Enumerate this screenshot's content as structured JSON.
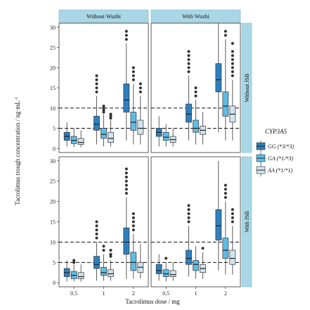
{
  "chart_data": {
    "type": "boxplot",
    "xlabel": "Tacrolimus dose / mg",
    "ylabel": "Tacrolimus trough concentration / ng·mL",
    "ylabel_superscript": "-1",
    "x_categories": [
      "0.5",
      "1",
      "2"
    ],
    "y_ticks": [
      0,
      5,
      10,
      15,
      20,
      25,
      30
    ],
    "ylim": [
      -1,
      31
    ],
    "reference_lines": [
      5,
      10
    ],
    "col_facets": [
      "Without Wuzhi",
      "With Wuzhi"
    ],
    "row_facets": [
      "Without JSB",
      "With JSB"
    ],
    "legend": {
      "title": "CYP3A5",
      "placement": "right",
      "entries": [
        {
          "label": "GG (*3/*3)",
          "color": "#2f7fbd"
        },
        {
          "label": "GA (*1/*3)",
          "color": "#5cbde6"
        },
        {
          "label": "AA (*1/*1)",
          "color": "#d2e4ee"
        }
      ]
    },
    "panels": [
      {
        "row": 0,
        "col": 0,
        "groups": [
          {
            "dose": "0.5",
            "boxes": [
              {
                "q1": 2,
                "median": 3,
                "q3": 4,
                "lw": 0.5,
                "uw": 6.5,
                "outliers": []
              },
              {
                "q1": 1.2,
                "median": 2,
                "q3": 3,
                "lw": 0.3,
                "uw": 5,
                "outliers": []
              },
              {
                "q1": 1,
                "median": 1.5,
                "q3": 2.5,
                "lw": 0.3,
                "uw": 4.5,
                "outliers": []
              }
            ]
          },
          {
            "dose": "1",
            "boxes": [
              {
                "q1": 4.5,
                "median": 6,
                "q3": 8,
                "lw": 1,
                "uw": 13,
                "outliers": [
                  14,
                  15,
                  16,
                  17,
                  18
                ]
              },
              {
                "q1": 2.5,
                "median": 3.5,
                "q3": 5,
                "lw": 0.5,
                "uw": 8.5,
                "outliers": [
                  9,
                  9.5,
                  10,
                  10.5
                ]
              },
              {
                "q1": 1.5,
                "median": 2.5,
                "q3": 4,
                "lw": 0.5,
                "uw": 7,
                "outliers": [
                  7.5,
                  8,
                  8.5
                ]
              }
            ]
          },
          {
            "dose": "2",
            "boxes": [
              {
                "q1": 9,
                "median": 12,
                "q3": 16,
                "lw": 2,
                "uw": 26,
                "outliers": [
                  27,
                  28,
                  29
                ]
              },
              {
                "q1": 4.5,
                "median": 6.5,
                "q3": 9,
                "lw": 1,
                "uw": 16,
                "outliers": [
                  17,
                  18,
                  19,
                  20
                ]
              },
              {
                "q1": 3.5,
                "median": 5,
                "q3": 7,
                "lw": 1,
                "uw": 13,
                "outliers": [
                  14,
                  15,
                  16
                ]
              }
            ]
          }
        ]
      },
      {
        "row": 0,
        "col": 1,
        "groups": [
          {
            "dose": "0.5",
            "boxes": [
              {
                "q1": 3,
                "median": 4,
                "q3": 5,
                "lw": 0.5,
                "uw": 8,
                "outliers": []
              },
              {
                "q1": 2,
                "median": 2.8,
                "q3": 4,
                "lw": 0.5,
                "uw": 6,
                "outliers": []
              },
              {
                "q1": 1.5,
                "median": 2.2,
                "q3": 3,
                "lw": 0.5,
                "uw": 5,
                "outliers": []
              }
            ]
          },
          {
            "dose": "1",
            "boxes": [
              {
                "q1": 6.5,
                "median": 8.5,
                "q3": 11,
                "lw": 2,
                "uw": 18,
                "outliers": [
                  19,
                  20,
                  21,
                  22,
                  23,
                  24
                ]
              },
              {
                "q1": 4,
                "median": 5,
                "q3": 7,
                "lw": 1,
                "uw": 12,
                "outliers": [
                  13,
                  14,
                  15
                ]
              },
              {
                "q1": 3.5,
                "median": 4.5,
                "q3": 5.5,
                "lw": 1,
                "uw": 9,
                "outliers": []
              }
            ]
          },
          {
            "dose": "2",
            "boxes": [
              {
                "q1": 14,
                "median": 17,
                "q3": 21,
                "lw": 4,
                "uw": 31,
                "outliers": []
              },
              {
                "q1": 8,
                "median": 10.5,
                "q3": 14,
                "lw": 2,
                "uw": 27,
                "outliers": [
                  28,
                  29
                ]
              },
              {
                "q1": 6.5,
                "median": 8.5,
                "q3": 10.5,
                "lw": 2,
                "uw": 17,
                "outliers": [
                  18,
                  19,
                  20,
                  21,
                  22,
                  23,
                  24,
                  26
                ]
              }
            ]
          }
        ]
      },
      {
        "row": 1,
        "col": 0,
        "groups": [
          {
            "dose": "0.5",
            "boxes": [
              {
                "q1": 1.5,
                "median": 2.5,
                "q3": 3.5,
                "lw": 0.3,
                "uw": 5.5,
                "outliers": []
              },
              {
                "q1": 1,
                "median": 1.8,
                "q3": 2.8,
                "lw": 0.3,
                "uw": 4.5,
                "outliers": [
                  5,
                  5.5
                ]
              },
              {
                "q1": 1,
                "median": 1.5,
                "q3": 2.5,
                "lw": 0.3,
                "uw": 4.5,
                "outliers": []
              }
            ]
          },
          {
            "dose": "1",
            "boxes": [
              {
                "q1": 3.5,
                "median": 4.5,
                "q3": 6.5,
                "lw": 0.5,
                "uw": 10,
                "outliers": [
                  11,
                  12,
                  13,
                  14,
                  15
                ]
              },
              {
                "q1": 1.8,
                "median": 2.5,
                "q3": 3.8,
                "lw": 0.5,
                "uw": 7,
                "outliers": [
                  8,
                  9
                ]
              },
              {
                "q1": 1.5,
                "median": 2.2,
                "q3": 3.2,
                "lw": 0.5,
                "uw": 5.5,
                "outliers": [
                  6.5,
                  7,
                  8
                ]
              }
            ]
          },
          {
            "dose": "2",
            "boxes": [
              {
                "q1": 7,
                "median": 10,
                "q3": 13.5,
                "lw": 1,
                "uw": 21,
                "outliers": [
                  22,
                  23,
                  24,
                  25,
                  26,
                  27,
                  28
                ]
              },
              {
                "q1": 3,
                "median": 5,
                "q3": 7.5,
                "lw": 1,
                "uw": 12,
                "outliers": [
                  13,
                  14,
                  15,
                  16,
                  17
                ]
              },
              {
                "q1": 2.5,
                "median": 3.8,
                "q3": 5,
                "lw": 1,
                "uw": 9.5,
                "outliers": []
              }
            ]
          }
        ]
      },
      {
        "row": 1,
        "col": 1,
        "groups": [
          {
            "dose": "0.5",
            "boxes": [
              {
                "q1": 2.2,
                "median": 3,
                "q3": 4.5,
                "lw": 0.5,
                "uw": 7,
                "outliers": []
              },
              {
                "q1": 1.5,
                "median": 2.2,
                "q3": 3.2,
                "lw": 0.3,
                "uw": 5,
                "outliers": [
                  6
                ]
              },
              {
                "q1": 1.5,
                "median": 2,
                "q3": 3,
                "lw": 0.5,
                "uw": 5,
                "outliers": []
              }
            ]
          },
          {
            "dose": "1",
            "boxes": [
              {
                "q1": 4.5,
                "median": 6,
                "q3": 8,
                "lw": 1.5,
                "uw": 14,
                "outliers": [
                  15,
                  16,
                  17,
                  18,
                  19
                ]
              },
              {
                "q1": 3,
                "median": 4.5,
                "q3": 5.5,
                "lw": 1,
                "uw": 9,
                "outliers": []
              },
              {
                "q1": 2.5,
                "median": 3.5,
                "q3": 4.5,
                "lw": 1,
                "uw": 7.5,
                "outliers": [
                  8.5
                ]
              }
            ]
          },
          {
            "dose": "2",
            "boxes": [
              {
                "q1": 10.5,
                "median": 14,
                "q3": 18,
                "lw": 3,
                "uw": 30,
                "outliers": []
              },
              {
                "q1": 6,
                "median": 8,
                "q3": 11,
                "lw": 2,
                "uw": 20,
                "outliers": [
                  21,
                  22,
                  23,
                  24
                ]
              },
              {
                "q1": 4.5,
                "median": 6,
                "q3": 8,
                "lw": 2,
                "uw": 14,
                "outliers": [
                  15,
                  16,
                  17,
                  18
                ]
              }
            ]
          }
        ]
      }
    ]
  }
}
